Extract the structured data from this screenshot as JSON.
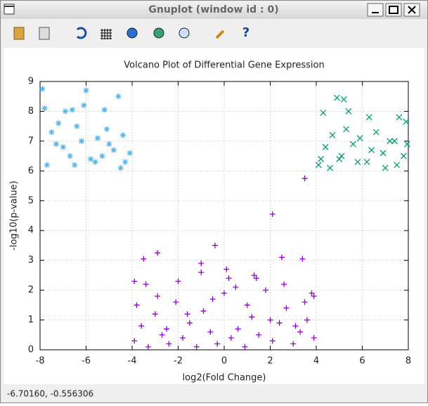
{
  "window": {
    "title": "Gnuplot (window id : 0)",
    "status": "-6.70160, -0.556306"
  },
  "chart_data": {
    "type": "scatter",
    "title": "Volcano Plot of Differential Gene Expression",
    "x_label": "log2(Fold Change)",
    "y_label": "-log10(p-value)",
    "xlim": [
      -8,
      8
    ],
    "xticks": [
      -8,
      -6,
      -4,
      -2,
      0,
      2,
      4,
      6,
      8
    ],
    "ylim": [
      0,
      9
    ],
    "yticks": [
      0,
      1,
      2,
      3,
      4,
      5,
      6,
      7,
      8,
      9
    ],
    "grid": true,
    "series": [
      {
        "color": "#9400d3",
        "marker": "plus",
        "x": [
          -3.9,
          -3.6,
          -3.3,
          -3.0,
          -2.7,
          -2.4,
          -2.1,
          -1.8,
          -1.5,
          -1.2,
          -0.9,
          -0.6,
          -0.3,
          0.0,
          0.3,
          0.6,
          0.9,
          1.2,
          1.5,
          1.8,
          2.1,
          2.4,
          2.7,
          3.0,
          3.3,
          3.6,
          3.9,
          -3.8,
          -3.4,
          -2.9,
          -2.5,
          -2.0,
          -1.6,
          -1.0,
          -0.5,
          0.1,
          0.5,
          1.0,
          1.4,
          2.0,
          2.6,
          3.1,
          3.5,
          3.8,
          -3.5,
          -2.9,
          -0.4,
          2.1,
          3.5,
          2.5,
          3.4,
          -1.0,
          0.2,
          1.3,
          -3.9,
          3.9
        ],
        "values": [
          0.3,
          0.8,
          0.1,
          1.2,
          0.5,
          0.2,
          1.6,
          0.4,
          0.9,
          0.1,
          1.3,
          0.6,
          0.2,
          1.9,
          0.4,
          0.7,
          0.1,
          1.1,
          0.5,
          2.0,
          0.3,
          0.9,
          1.4,
          0.2,
          0.6,
          1.0,
          0.4,
          1.5,
          2.2,
          1.8,
          0.7,
          2.3,
          1.2,
          2.6,
          1.7,
          2.7,
          2.1,
          1.5,
          2.4,
          1.0,
          2.2,
          0.8,
          1.6,
          1.9,
          3.05,
          3.25,
          3.5,
          4.55,
          5.75,
          3.1,
          3.05,
          2.9,
          2.4,
          2.5,
          2.3,
          1.8
        ]
      },
      {
        "color": "#56b4e9",
        "marker": "star",
        "x": [
          -7.9,
          -6.0,
          -4.6,
          -7.8,
          -6.1,
          -5.2,
          -6.9,
          -6.6,
          -7.5,
          -7.0,
          -6.4,
          -5.8,
          -5.5,
          -5.0,
          -4.3,
          -4.1,
          -7.7,
          -7.2,
          -6.7,
          -6.2,
          -5.6,
          -5.1,
          -4.8,
          -4.4,
          -7.3,
          -6.5,
          -5.3,
          -4.5
        ],
        "values": [
          8.75,
          8.7,
          8.5,
          8.1,
          8.2,
          8.05,
          8.0,
          8.05,
          7.3,
          6.8,
          7.5,
          6.4,
          7.1,
          6.9,
          6.3,
          6.6,
          6.2,
          7.6,
          6.5,
          7.0,
          6.3,
          7.4,
          6.7,
          7.2,
          6.9,
          6.2,
          6.5,
          6.1
        ]
      },
      {
        "color": "#009e73",
        "marker": "cross",
        "x": [
          4.9,
          5.2,
          5.4,
          4.3,
          6.3,
          7.6,
          7.9,
          4.1,
          4.4,
          4.7,
          5.0,
          5.6,
          5.9,
          6.2,
          6.6,
          6.9,
          7.2,
          7.5,
          7.8,
          4.2,
          4.6,
          5.3,
          5.8,
          6.4,
          7.0,
          7.4,
          7.95,
          5.1
        ],
        "values": [
          8.45,
          8.4,
          8.0,
          7.95,
          7.8,
          7.8,
          7.65,
          6.2,
          6.8,
          7.2,
          6.4,
          6.9,
          7.1,
          6.3,
          7.3,
          6.6,
          7.0,
          6.2,
          6.5,
          6.4,
          6.1,
          7.4,
          6.3,
          6.7,
          6.1,
          7.0,
          6.9,
          6.5
        ]
      }
    ]
  }
}
